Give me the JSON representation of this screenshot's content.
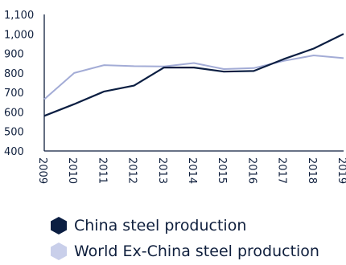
{
  "chart_data": {
    "type": "line",
    "x": [
      "2009",
      "2010",
      "2011",
      "2012",
      "2013",
      "2014",
      "2015",
      "2016",
      "2017",
      "2018",
      "2019"
    ],
    "series": [
      {
        "name": "China steel production",
        "values": [
          580,
          640,
          705,
          735,
          828,
          828,
          807,
          810,
          871,
          925,
          1000
        ],
        "color": "#0b1e42"
      },
      {
        "name": "World Ex-China steel production",
        "values": [
          665,
          800,
          840,
          835,
          833,
          851,
          820,
          825,
          862,
          890,
          876
        ],
        "color": "#a3acd6"
      }
    ],
    "y_ticks": [
      "1,100",
      "1,000",
      "900",
      "800",
      "700",
      "600",
      "500",
      "400"
    ],
    "ylim": [
      400,
      1100
    ],
    "title": "",
    "xlabel": "",
    "ylabel": "",
    "grid": false,
    "legend_position": "bottom"
  }
}
